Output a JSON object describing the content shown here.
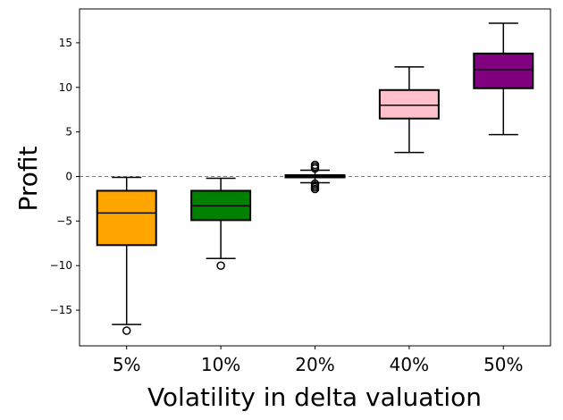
{
  "chart_data": {
    "type": "box",
    "title": "",
    "xlabel": "Volatility in delta valuation",
    "ylabel": "Profit",
    "ylim": [
      -19,
      18.8
    ],
    "yticks": [
      -15,
      -10,
      -5,
      0,
      5,
      10,
      15
    ],
    "ytick_labels": [
      "−15",
      "−10",
      "−5",
      "0",
      "5",
      "10",
      "15"
    ],
    "reference_line": {
      "y": 0,
      "style": "dashed",
      "color": "#808080"
    },
    "categories": [
      "5%",
      "10%",
      "20%",
      "40%",
      "50%"
    ],
    "boxes": [
      {
        "label": "5%",
        "color": "#ffa500",
        "whisker_low": -16.6,
        "q1": -7.7,
        "median": -4.1,
        "q3": -1.6,
        "whisker_high": -0.1,
        "outliers": [
          -17.3
        ]
      },
      {
        "label": "10%",
        "color": "#008000",
        "whisker_low": -9.2,
        "q1": -4.9,
        "median": -3.3,
        "q3": -1.6,
        "whisker_high": -0.2,
        "outliers": [
          -10.0
        ]
      },
      {
        "label": "20%",
        "color": "#000000",
        "whisker_low": -0.7,
        "q1": -0.1,
        "median": 0.0,
        "q3": 0.15,
        "whisker_high": 0.7,
        "outliers": [
          -1.4,
          -1.2,
          -1.0,
          -0.8,
          0.9,
          1.1,
          1.3
        ]
      },
      {
        "label": "40%",
        "color": "#ffc0cb",
        "whisker_low": 2.7,
        "q1": 6.5,
        "median": 8.0,
        "q3": 9.7,
        "whisker_high": 12.3,
        "outliers": []
      },
      {
        "label": "50%",
        "color": "#800080",
        "whisker_low": 4.7,
        "q1": 9.9,
        "median": 12.0,
        "q3": 13.8,
        "whisker_high": 17.2,
        "outliers": []
      }
    ],
    "grid": false,
    "legend": "none"
  }
}
